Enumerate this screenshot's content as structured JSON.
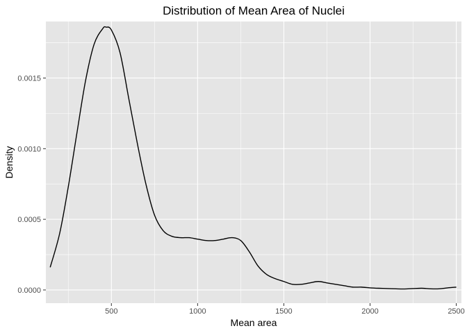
{
  "chart_data": {
    "type": "area",
    "title": "Distribution of Mean Area of Nuclei",
    "xlabel": "Mean area",
    "ylabel": "Density",
    "xlim": [
      120,
      2530
    ],
    "ylim": [
      -9.35e-05,
      0.0019
    ],
    "x_ticks": [
      500,
      1000,
      1500,
      2000,
      2500
    ],
    "x_tick_labels": [
      "500",
      "1000",
      "1500",
      "2000",
      "2500"
    ],
    "x_minor_ticks": [
      250,
      750,
      1250,
      1750,
      2250
    ],
    "y_ticks": [
      0,
      0.0005,
      0.001,
      0.0015
    ],
    "y_tick_labels": [
      "0.0000",
      "0.0005",
      "0.0010",
      "0.0015"
    ],
    "y_minor_ticks": [
      0.00025,
      0.00075,
      0.00125,
      0.00175
    ],
    "grid": true,
    "legend": "none",
    "colors": {
      "panel": "#e5e5e5",
      "grid": "#ffffff",
      "line": "#000000"
    },
    "series": [
      {
        "x": [
          145,
          200,
          250,
          300,
          350,
          400,
          450,
          470,
          500,
          550,
          600,
          650,
          700,
          750,
          800,
          850,
          900,
          950,
          1000,
          1050,
          1100,
          1150,
          1200,
          1250,
          1300,
          1350,
          1400,
          1450,
          1500,
          1550,
          1600,
          1650,
          1700,
          1750,
          1800,
          1850,
          1900,
          1950,
          2000,
          2050,
          2100,
          2150,
          2200,
          2250,
          2300,
          2350,
          2400,
          2450,
          2500
        ],
        "y": [
          0.00016,
          0.0004,
          0.00073,
          0.00111,
          0.00148,
          0.00174,
          0.00185,
          0.00186,
          0.00184,
          0.00168,
          0.00136,
          0.00104,
          0.00075,
          0.00053,
          0.00042,
          0.00038,
          0.00037,
          0.00037,
          0.00036,
          0.00035,
          0.00035,
          0.00036,
          0.00037,
          0.00035,
          0.00027,
          0.00017,
          0.00011,
          8e-05,
          6e-05,
          4e-05,
          4e-05,
          5e-05,
          6e-05,
          5e-05,
          4e-05,
          3e-05,
          2e-05,
          2e-05,
          1.5e-05,
          1.2e-05,
          1e-05,
          8e-06,
          7e-06,
          1e-05,
          1.2e-05,
          8e-06,
          8e-06,
          1.5e-05,
          2e-05
        ]
      }
    ]
  }
}
